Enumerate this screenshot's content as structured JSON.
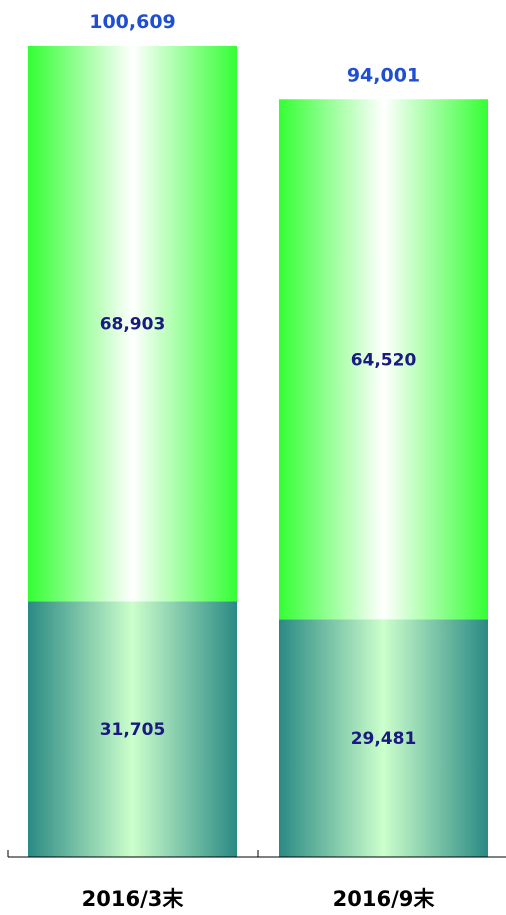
{
  "chart_data": {
    "type": "bar",
    "stacked": true,
    "categories": [
      "2016/3末",
      "2016/9末"
    ],
    "series": [
      {
        "values": [
          31705,
          29481
        ],
        "color": "#2a8a84"
      },
      {
        "values": [
          68903,
          64520
        ],
        "color": "#33ff33"
      }
    ],
    "totals": [
      "100,609",
      "94,001"
    ],
    "segment_labels": [
      [
        "31,705",
        "29,481"
      ],
      [
        "68,903",
        "64,520"
      ]
    ],
    "ylim": [
      0,
      100609
    ],
    "grid": false,
    "legend": "none"
  }
}
